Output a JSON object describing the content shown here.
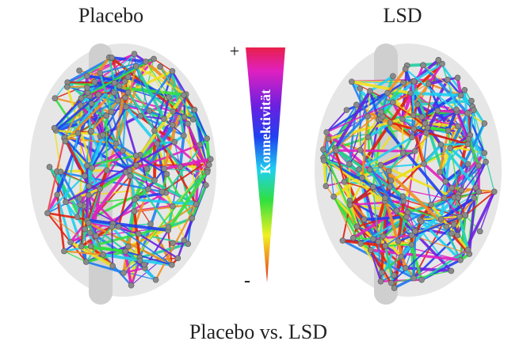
{
  "panels": [
    {
      "title": "Placebo"
    },
    {
      "title": "LSD"
    }
  ],
  "colorbar": {
    "max_label": "+",
    "label": "Konnektivität",
    "min_label": "-"
  },
  "caption": "Placebo vs. LSD"
}
